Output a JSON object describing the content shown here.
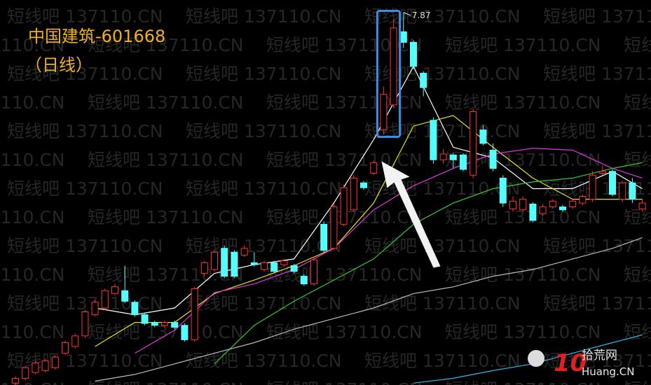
{
  "chart_data": {
    "type": "candlestick",
    "title": "中国建筑-601668",
    "subtitle": "（日线）",
    "watermark": "短线吧 137110.CN",
    "logo": {
      "number": "10",
      "domain": "Huang.CN",
      "name": "拾荒网"
    },
    "up_color": "#ff3232",
    "down_color": "#54ffff",
    "ylim": [
      4.0,
      8.0
    ],
    "candles": [
      [
        4.02,
        4.07,
        4.09,
        4.0
      ],
      [
        4.07,
        4.18,
        4.2,
        4.05
      ],
      [
        4.13,
        4.23,
        4.25,
        4.11
      ],
      [
        4.15,
        4.25,
        4.27,
        4.13
      ],
      [
        4.18,
        4.29,
        4.31,
        4.16
      ],
      [
        4.33,
        4.44,
        4.46,
        4.31
      ],
      [
        4.4,
        4.51,
        4.53,
        4.38
      ],
      [
        4.51,
        4.76,
        4.78,
        4.49
      ],
      [
        4.73,
        4.86,
        4.88,
        4.71
      ],
      [
        4.8,
        4.98,
        5.0,
        4.78
      ],
      [
        4.95,
        5.02,
        5.05,
        4.93
      ],
      [
        4.98,
        4.87,
        5.24,
        4.85
      ],
      [
        4.86,
        4.73,
        4.88,
        4.71
      ],
      [
        4.73,
        4.64,
        4.75,
        4.62
      ],
      [
        4.65,
        4.62,
        4.67,
        4.6
      ],
      [
        4.62,
        4.65,
        4.67,
        4.6
      ],
      [
        4.65,
        4.6,
        4.67,
        4.58
      ],
      [
        4.62,
        4.47,
        4.64,
        4.45
      ],
      [
        4.47,
        5.0,
        5.02,
        4.45
      ],
      [
        5.16,
        5.27,
        5.29,
        5.13
      ],
      [
        5.2,
        5.38,
        5.4,
        5.18
      ],
      [
        5.42,
        5.13,
        5.45,
        5.11
      ],
      [
        5.38,
        5.13,
        5.4,
        5.11
      ],
      [
        5.35,
        5.42,
        5.45,
        5.33
      ],
      [
        5.27,
        5.25,
        5.38,
        5.23
      ],
      [
        5.2,
        5.27,
        5.29,
        5.18
      ],
      [
        5.27,
        5.18,
        5.29,
        5.16
      ],
      [
        5.25,
        5.29,
        5.31,
        5.23
      ],
      [
        5.24,
        5.18,
        5.26,
        5.16
      ],
      [
        5.13,
        5.05,
        5.15,
        5.03
      ],
      [
        5.05,
        5.3,
        5.33,
        5.03
      ],
      [
        5.67,
        5.4,
        5.7,
        5.38
      ],
      [
        5.42,
        5.85,
        5.88,
        5.4
      ],
      [
        5.67,
        6.05,
        6.08,
        5.65
      ],
      [
        5.82,
        6.15,
        6.18,
        5.8
      ],
      [
        6.1,
        6.05,
        6.12,
        6.03
      ],
      [
        6.2,
        6.31,
        6.33,
        6.18
      ],
      [
        6.65,
        7.02,
        7.1,
        6.6
      ],
      [
        6.91,
        7.71,
        7.8,
        6.88
      ],
      [
        7.67,
        7.56,
        7.87,
        7.5
      ],
      [
        7.56,
        7.31,
        7.58,
        7.28
      ],
      [
        7.24,
        7.09,
        7.26,
        7.0
      ],
      [
        6.75,
        6.34,
        6.78,
        6.3
      ],
      [
        6.34,
        6.4,
        6.45,
        6.3
      ],
      [
        6.39,
        6.34,
        6.41,
        6.25
      ],
      [
        6.39,
        6.24,
        6.41,
        6.22
      ],
      [
        6.18,
        6.84,
        6.87,
        6.15
      ],
      [
        6.65,
        6.51,
        6.7,
        6.49
      ],
      [
        6.44,
        6.25,
        6.51,
        6.22
      ],
      [
        6.15,
        5.89,
        6.18,
        5.85
      ],
      [
        5.83,
        5.91,
        5.96,
        5.8
      ],
      [
        5.82,
        5.93,
        5.96,
        5.8
      ],
      [
        5.88,
        5.71,
        5.9,
        5.69
      ],
      [
        5.78,
        5.85,
        5.88,
        5.76
      ],
      [
        5.85,
        5.91,
        5.93,
        5.83
      ],
      [
        5.85,
        5.82,
        5.87,
        5.8
      ],
      [
        5.85,
        5.91,
        5.93,
        5.83
      ],
      [
        5.89,
        5.96,
        5.98,
        5.87
      ],
      [
        5.93,
        6.18,
        6.22,
        5.9
      ],
      [
        6.2,
        6.22,
        6.28,
        6.18
      ],
      [
        6.22,
        5.98,
        6.24,
        5.96
      ],
      [
        5.93,
        6.1,
        6.12,
        5.9
      ],
      [
        6.1,
        5.93,
        6.15,
        5.89
      ],
      [
        5.83,
        5.89,
        5.93,
        5.8
      ]
    ],
    "ma_x": [
      0,
      4,
      8,
      12,
      16,
      20,
      24,
      28,
      32,
      36,
      40,
      44,
      48,
      52,
      56,
      60,
      63
    ],
    "lines": [
      {
        "color": "#ffffff",
        "values": [
          null,
          null,
          4.8,
          4.73,
          4.8,
          5.16,
          5.25,
          5.31,
          5.89,
          6.55,
          7.31,
          6.47,
          6.36,
          6.04,
          6.04,
          6.22,
          6.04
        ]
      },
      {
        "color": "#e6e600",
        "values": [
          null,
          null,
          4.4,
          4.65,
          4.65,
          4.95,
          5.09,
          5.24,
          5.42,
          5.89,
          6.69,
          6.8,
          6.47,
          6.15,
          5.93,
          5.93,
          5.93
        ]
      },
      {
        "color": "#e633e6",
        "values": [
          null,
          null,
          null,
          4.33,
          4.57,
          4.96,
          5.05,
          5.2,
          5.42,
          5.82,
          6.07,
          6.25,
          6.4,
          6.46,
          6.44,
          6.25,
          6.15
        ]
      },
      {
        "color": "#33cc33",
        "values": [
          null,
          null,
          null,
          null,
          null,
          4.22,
          4.62,
          4.87,
          5.09,
          5.31,
          5.67,
          5.89,
          6.04,
          6.11,
          6.15,
          6.25,
          6.31
        ]
      },
      {
        "color": "#bbbbbb",
        "values": [
          null,
          null,
          4.04,
          4.11,
          4.22,
          4.33,
          4.44,
          4.58,
          4.69,
          4.8,
          4.95,
          5.02,
          5.13,
          5.2,
          5.31,
          5.42,
          5.53
        ]
      },
      {
        "color": "#2fb6e6",
        "values": [
          null,
          null,
          null,
          null,
          null,
          null,
          null,
          null,
          null,
          null,
          4.02,
          4.07,
          4.15,
          4.22,
          4.33,
          4.44,
          4.52
        ]
      }
    ]
  }
}
